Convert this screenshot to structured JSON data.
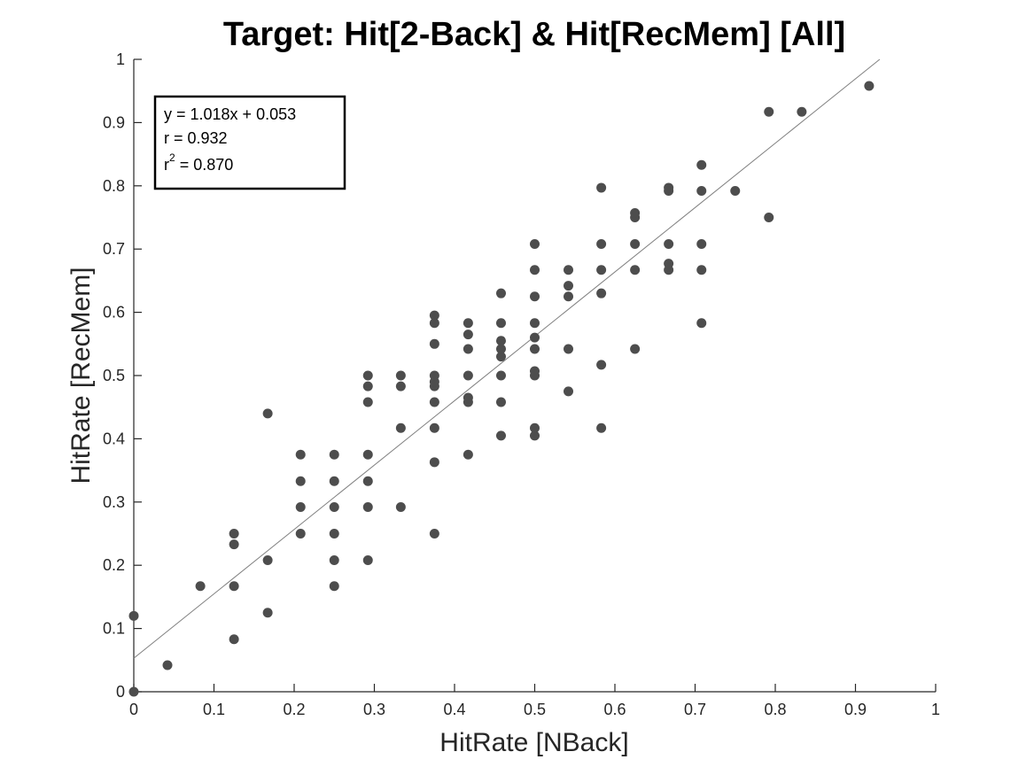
{
  "chart_data": {
    "type": "scatter",
    "title": "Target: Hit[2-Back] & Hit[RecMem] [All]",
    "xlabel": "HitRate [NBack]",
    "ylabel": "HitRate [RecMem]",
    "xlim": [
      0,
      1
    ],
    "ylim": [
      0,
      1
    ],
    "xticks": [
      "0",
      "0.1",
      "0.2",
      "0.3",
      "0.4",
      "0.5",
      "0.6",
      "0.7",
      "0.8",
      "0.9",
      "1"
    ],
    "yticks": [
      "0",
      "0.1",
      "0.2",
      "0.3",
      "0.4",
      "0.5",
      "0.6",
      "0.7",
      "0.8",
      "0.9",
      "1"
    ],
    "grid": false,
    "marker_color": "#4d4d4d",
    "fit_line": {
      "slope": 1.018,
      "intercept": 0.053,
      "color": "#808080"
    },
    "stats": {
      "equation": "y = 1.018x + 0.053",
      "r": "r = 0.932",
      "r2_prefix": "r",
      "r2_sup": "2",
      "r2_value": " = 0.870"
    },
    "points": [
      [
        0,
        0
      ],
      [
        0,
        0.12
      ],
      [
        0.042,
        0.042
      ],
      [
        0.083,
        0.167
      ],
      [
        0.125,
        0.083
      ],
      [
        0.125,
        0.167
      ],
      [
        0.125,
        0.233
      ],
      [
        0.125,
        0.25
      ],
      [
        0.167,
        0.125
      ],
      [
        0.167,
        0.208
      ],
      [
        0.167,
        0.44
      ],
      [
        0.208,
        0.25
      ],
      [
        0.208,
        0.292
      ],
      [
        0.208,
        0.333
      ],
      [
        0.208,
        0.375
      ],
      [
        0.25,
        0.167
      ],
      [
        0.25,
        0.208
      ],
      [
        0.25,
        0.25
      ],
      [
        0.25,
        0.292
      ],
      [
        0.25,
        0.333
      ],
      [
        0.25,
        0.375
      ],
      [
        0.292,
        0.208
      ],
      [
        0.292,
        0.292
      ],
      [
        0.292,
        0.333
      ],
      [
        0.292,
        0.375
      ],
      [
        0.292,
        0.458
      ],
      [
        0.292,
        0.483
      ],
      [
        0.292,
        0.5
      ],
      [
        0.333,
        0.292
      ],
      [
        0.333,
        0.417
      ],
      [
        0.333,
        0.483
      ],
      [
        0.333,
        0.5
      ],
      [
        0.375,
        0.25
      ],
      [
        0.375,
        0.363
      ],
      [
        0.375,
        0.417
      ],
      [
        0.375,
        0.458
      ],
      [
        0.375,
        0.483
      ],
      [
        0.375,
        0.49
      ],
      [
        0.375,
        0.5
      ],
      [
        0.375,
        0.55
      ],
      [
        0.375,
        0.583
      ],
      [
        0.375,
        0.595
      ],
      [
        0.417,
        0.375
      ],
      [
        0.417,
        0.458
      ],
      [
        0.417,
        0.465
      ],
      [
        0.417,
        0.5
      ],
      [
        0.417,
        0.542
      ],
      [
        0.417,
        0.565
      ],
      [
        0.417,
        0.583
      ],
      [
        0.458,
        0.405
      ],
      [
        0.458,
        0.458
      ],
      [
        0.458,
        0.5
      ],
      [
        0.458,
        0.53
      ],
      [
        0.458,
        0.542
      ],
      [
        0.458,
        0.555
      ],
      [
        0.458,
        0.583
      ],
      [
        0.458,
        0.63
      ],
      [
        0.5,
        0.405
      ],
      [
        0.5,
        0.417
      ],
      [
        0.5,
        0.5
      ],
      [
        0.5,
        0.507
      ],
      [
        0.5,
        0.542
      ],
      [
        0.5,
        0.56
      ],
      [
        0.5,
        0.583
      ],
      [
        0.5,
        0.625
      ],
      [
        0.5,
        0.667
      ],
      [
        0.5,
        0.708
      ],
      [
        0.542,
        0.475
      ],
      [
        0.542,
        0.542
      ],
      [
        0.542,
        0.625
      ],
      [
        0.542,
        0.642
      ],
      [
        0.542,
        0.667
      ],
      [
        0.583,
        0.417
      ],
      [
        0.583,
        0.517
      ],
      [
        0.583,
        0.63
      ],
      [
        0.583,
        0.667
      ],
      [
        0.583,
        0.708
      ],
      [
        0.583,
        0.797
      ],
      [
        0.625,
        0.542
      ],
      [
        0.625,
        0.667
      ],
      [
        0.625,
        0.708
      ],
      [
        0.625,
        0.75
      ],
      [
        0.625,
        0.757
      ],
      [
        0.667,
        0.667
      ],
      [
        0.667,
        0.677
      ],
      [
        0.667,
        0.708
      ],
      [
        0.667,
        0.792
      ],
      [
        0.667,
        0.797
      ],
      [
        0.708,
        0.583
      ],
      [
        0.708,
        0.667
      ],
      [
        0.708,
        0.708
      ],
      [
        0.708,
        0.792
      ],
      [
        0.708,
        0.833
      ],
      [
        0.75,
        0.792
      ],
      [
        0.792,
        0.75
      ],
      [
        0.792,
        0.917
      ],
      [
        0.833,
        0.917
      ],
      [
        0.917,
        0.958
      ]
    ]
  }
}
